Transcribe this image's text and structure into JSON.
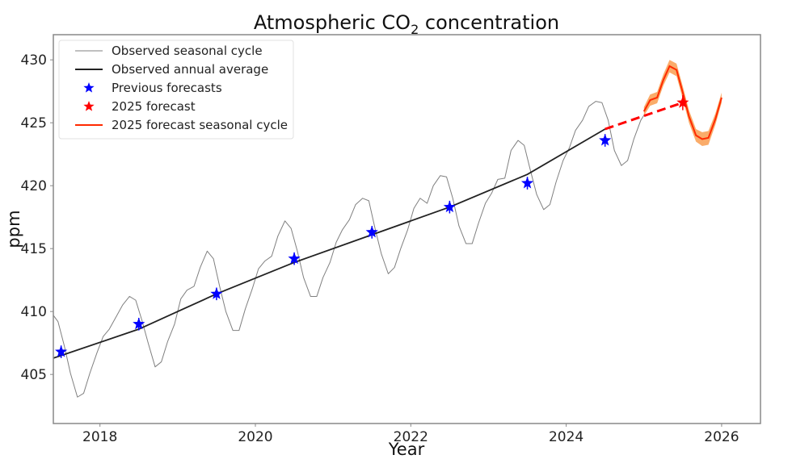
{
  "chart_data": {
    "type": "line",
    "title": "Atmospheric CO",
    "title_subscript": "2",
    "title_suffix": " concentration",
    "xlabel": "Year",
    "ylabel": "ppm",
    "xlim": [
      2017.4,
      2026.5
    ],
    "ylim": [
      401.1,
      432.0
    ],
    "xticks": [
      2018,
      2020,
      2022,
      2024,
      2026
    ],
    "xtick_labels": [
      "2018",
      "2020",
      "2022",
      "2024",
      "2026"
    ],
    "yticks": [
      405,
      410,
      415,
      420,
      425,
      430
    ],
    "ytick_labels": [
      "405",
      "410",
      "415",
      "420",
      "425",
      "430"
    ],
    "grid": false,
    "legend_position": "top-left",
    "legend": [
      {
        "label": "Observed seasonal cycle",
        "kind": "thin-line",
        "color": "#808080"
      },
      {
        "label": "Observed annual average",
        "kind": "line",
        "color": "#222222"
      },
      {
        "label": "Previous forecasts",
        "kind": "star",
        "color": "#0000ff"
      },
      {
        "label": "2025 forecast",
        "kind": "star",
        "color": "#ff0000"
      },
      {
        "label": "2025 forecast seasonal cycle",
        "kind": "line",
        "color": "#ff2a00"
      }
    ],
    "series": [
      {
        "name": "Observed seasonal cycle",
        "color": "#808080",
        "x": [
          2017.4,
          2017.46,
          2017.54,
          2017.62,
          2017.71,
          2017.79,
          2017.87,
          2017.96,
          2018.04,
          2018.12,
          2018.21,
          2018.29,
          2018.38,
          2018.46,
          2018.54,
          2018.62,
          2018.71,
          2018.79,
          2018.87,
          2018.96,
          2019.04,
          2019.12,
          2019.21,
          2019.29,
          2019.38,
          2019.46,
          2019.54,
          2019.62,
          2019.71,
          2019.79,
          2019.87,
          2019.96,
          2020.04,
          2020.12,
          2020.21,
          2020.29,
          2020.38,
          2020.46,
          2020.54,
          2020.62,
          2020.71,
          2020.79,
          2020.87,
          2020.96,
          2021.04,
          2021.12,
          2021.21,
          2021.29,
          2021.38,
          2021.46,
          2021.54,
          2021.62,
          2021.71,
          2021.79,
          2021.87,
          2021.96,
          2022.04,
          2022.12,
          2022.21,
          2022.29,
          2022.38,
          2022.46,
          2022.54,
          2022.62,
          2022.71,
          2022.79,
          2022.87,
          2022.96,
          2023.04,
          2023.12,
          2023.21,
          2023.29,
          2023.38,
          2023.46,
          2023.54,
          2023.62,
          2023.71,
          2023.79,
          2023.87,
          2023.96,
          2024.04,
          2024.12,
          2024.21,
          2024.29,
          2024.38,
          2024.46,
          2024.54,
          2024.62,
          2024.71,
          2024.79,
          2024.87,
          2024.96,
          2025.0
        ],
        "values": [
          409.7,
          409.2,
          407.3,
          405.1,
          403.2,
          403.5,
          405.1,
          406.7,
          408.0,
          408.6,
          409.6,
          410.5,
          411.2,
          410.9,
          409.3,
          407.5,
          405.6,
          406.0,
          407.6,
          409.0,
          411.0,
          411.7,
          412.0,
          413.5,
          414.8,
          414.2,
          412.0,
          410.0,
          408.5,
          408.5,
          410.2,
          411.8,
          413.4,
          414.0,
          414.4,
          416.0,
          417.2,
          416.6,
          414.8,
          412.7,
          411.2,
          411.2,
          412.7,
          413.9,
          415.5,
          416.5,
          417.3,
          418.5,
          419.0,
          418.8,
          416.6,
          414.6,
          413.0,
          413.5,
          415.0,
          416.5,
          418.2,
          419.0,
          418.6,
          420.0,
          420.8,
          420.7,
          419.0,
          416.8,
          415.4,
          415.4,
          417.0,
          418.6,
          419.4,
          420.5,
          420.6,
          422.8,
          423.6,
          423.2,
          421.2,
          419.3,
          418.1,
          418.5,
          420.3,
          422.0,
          423.0,
          424.4,
          425.2,
          426.3,
          426.7,
          426.6,
          425.2,
          422.8,
          421.6,
          422.0,
          423.7,
          425.2,
          425.6
        ]
      },
      {
        "name": "Observed annual average",
        "color": "#222222",
        "x": [
          2017.4,
          2017.5,
          2018.5,
          2019.5,
          2020.5,
          2021.5,
          2022.5,
          2023.5,
          2024.5
        ],
        "values": [
          406.3,
          406.5,
          408.6,
          411.4,
          413.9,
          416.1,
          418.3,
          420.9,
          424.5
        ]
      },
      {
        "name": "Previous forecasts",
        "color": "#0000ff",
        "marker": "star",
        "x": [
          2017.5,
          2018.5,
          2019.5,
          2020.5,
          2021.5,
          2022.5,
          2023.5,
          2024.5
        ],
        "values": [
          406.8,
          409.0,
          411.4,
          414.2,
          416.3,
          418.3,
          420.2,
          423.6
        ],
        "error": [
          0.5,
          0.5,
          0.5,
          0.5,
          0.5,
          0.5,
          0.5,
          0.5
        ]
      },
      {
        "name": "2025 forecast",
        "color": "#ff0000",
        "marker": "star",
        "x": [
          2025.5
        ],
        "values": [
          426.6
        ],
        "error": [
          0.6
        ]
      },
      {
        "name": "2025 forecast trend",
        "color": "#ff0000",
        "style": "dashed",
        "x": [
          2024.5,
          2025.5
        ],
        "values": [
          424.5,
          426.6
        ]
      },
      {
        "name": "2025 forecast seasonal cycle",
        "color": "#ff2a00",
        "band_color": "#f9a35a",
        "x": [
          2025.0,
          2025.08,
          2025.17,
          2025.25,
          2025.33,
          2025.42,
          2025.5,
          2025.58,
          2025.67,
          2025.75,
          2025.83,
          2025.92,
          2026.0
        ],
        "values": [
          425.9,
          426.8,
          427.0,
          428.4,
          429.5,
          429.2,
          427.4,
          425.5,
          424.0,
          423.7,
          423.8,
          425.3,
          427.0
        ],
        "band_halfwidth": [
          0.35,
          0.45,
          0.45,
          0.45,
          0.5,
          0.5,
          0.5,
          0.5,
          0.5,
          0.55,
          0.55,
          0.45,
          0.4
        ]
      }
    ]
  }
}
